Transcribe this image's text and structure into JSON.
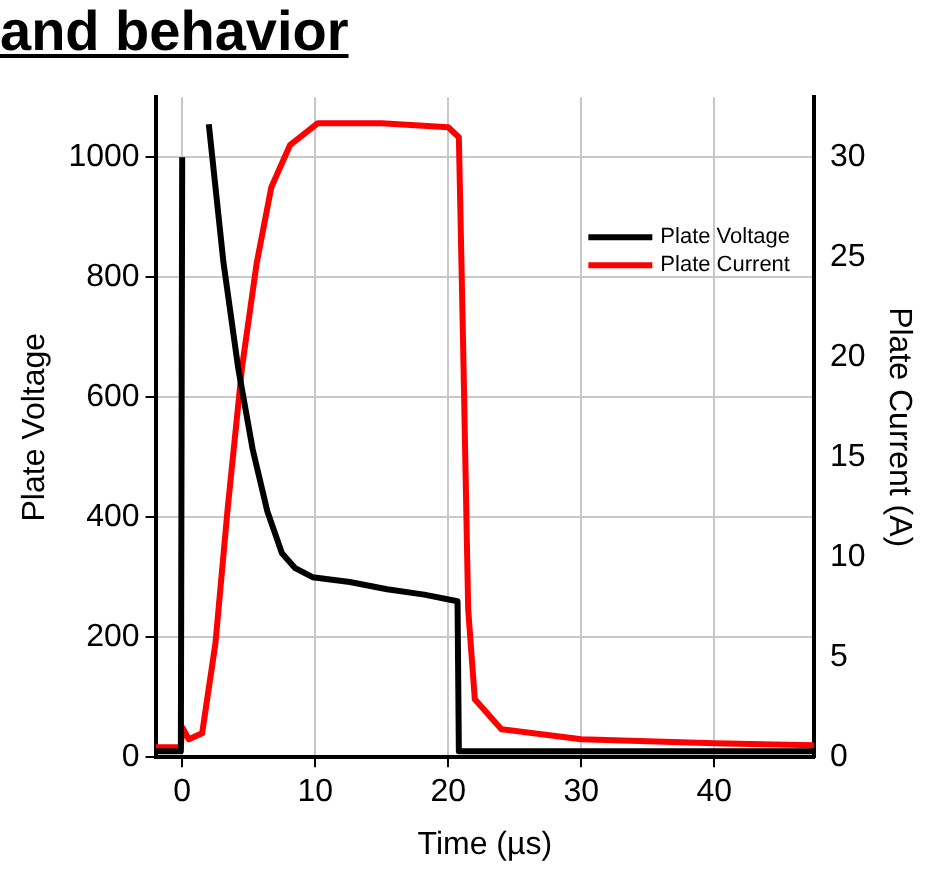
{
  "chart_data": {
    "type": "line",
    "title": "and behavior",
    "xlabel": "Time (µs)",
    "ylabel": "Plate Voltage",
    "y2label": "Plate Current (A)",
    "xlim": [
      -2,
      47.5
    ],
    "xticks": [
      0,
      10,
      20,
      30,
      40
    ],
    "ylim": [
      0,
      1100
    ],
    "yticks": [
      0,
      200,
      400,
      600,
      800,
      1000
    ],
    "y2lim": [
      0,
      33
    ],
    "y2ticks": [
      0,
      5,
      10,
      15,
      20,
      25,
      30
    ],
    "grid": true,
    "legend": "top right",
    "marker": "none",
    "line_style": "solid",
    "series": [
      {
        "name": "Plate Voltage",
        "color": "#000000",
        "x": [
          -2,
          -0.1,
          0,
          0.3,
          1.5,
          2,
          3.1,
          4.2,
          5.3,
          6.4,
          7.5,
          8.5,
          9.8,
          12.6,
          15.4,
          18.2,
          20.7,
          20.8,
          22,
          30,
          40,
          47.5
        ],
        "values": [
          10,
          10,
          1000,
          null,
          null,
          1055,
          825,
          650,
          513,
          410,
          340,
          315,
          300,
          292,
          280,
          271,
          260,
          10,
          10,
          10,
          10,
          10
        ]
      },
      {
        "name": "Plate Current",
        "color": "#ff0000",
        "axis": "y2",
        "x": [
          -2,
          -0.1,
          0,
          0.5,
          1.5,
          2.5,
          3.4,
          4.5,
          5.6,
          6.7,
          8.1,
          10.2,
          15,
          20,
          20.8,
          21.1,
          21.5,
          22,
          24,
          30,
          40,
          47.5
        ],
        "values": [
          0.5,
          0.5,
          1.5,
          0.9,
          1.2,
          5.7,
          12.3,
          19.5,
          24.7,
          28.5,
          30.6,
          31.7,
          31.7,
          31.5,
          31,
          21.3,
          7.4,
          2.9,
          1.4,
          0.9,
          0.7,
          0.6
        ]
      }
    ]
  }
}
